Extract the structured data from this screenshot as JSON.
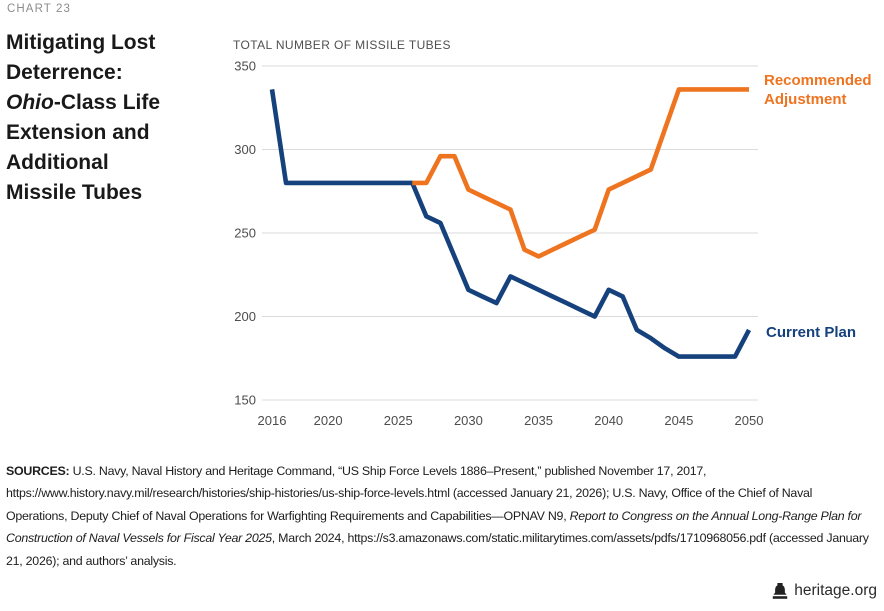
{
  "page": {
    "chart_label": "CHART 23",
    "footer_site": "heritage.org"
  },
  "title": {
    "pre": "Mitigating Lost Deterrence: ",
    "italic": "Ohio",
    "post": "-Class Life Extension and Additional Missile Tubes"
  },
  "sources": {
    "label": "SOURCES:",
    "part1": " U.S. Navy, Naval History and Heritage Command, “US Ship Force Levels 1886–Present,” published November 17, 2017, https://www.history.navy.mil/research/histories/ship-histories/us-ship-force-levels.html (accessed January 21, 2026); U.S. Navy, Office of the Chief of Naval Operations, Deputy Chief of Naval Operations for Warfighting Requirements and Capabilities—OPNAV N9, ",
    "italic": "Report to Congress on the Annual Long-Range Plan for Construction of Naval Vessels for Fiscal Year 2025",
    "part2": ", March 2024, https://s3.amazonaws.com/static.militarytimes.com/assets/pdfs/1710968056.pdf (accessed January 21, 2026); and authors’ analysis."
  },
  "chart_data": {
    "type": "line",
    "title": "TOTAL NUMBER OF MISSILE TUBES",
    "xlabel": "",
    "ylabel": "TOTAL NUMBER OF MISSILE TUBES",
    "xlim": [
      2016,
      2050
    ],
    "ylim": [
      150,
      350
    ],
    "xticks": [
      2016,
      2020,
      2025,
      2030,
      2035,
      2040,
      2045,
      2050
    ],
    "yticks": [
      150,
      200,
      250,
      300,
      350
    ],
    "grid": "horizontal-only",
    "legend_position": "right-of-line-ends",
    "series": [
      {
        "name": "Current Plan",
        "color": "#15417C",
        "x": [
          2016,
          2017,
          2018,
          2019,
          2020,
          2021,
          2022,
          2023,
          2024,
          2025,
          2026,
          2027,
          2028,
          2029,
          2030,
          2031,
          2032,
          2033,
          2034,
          2035,
          2036,
          2037,
          2038,
          2039,
          2040,
          2041,
          2042,
          2043,
          2044,
          2045,
          2046,
          2047,
          2048,
          2049,
          2050
        ],
        "values": [
          336,
          280,
          280,
          280,
          280,
          280,
          280,
          280,
          280,
          280,
          280,
          260,
          256,
          236,
          216,
          212,
          208,
          224,
          220,
          216,
          212,
          208,
          204,
          200,
          216,
          212,
          192,
          187,
          181,
          176,
          176,
          176,
          176,
          176,
          192
        ]
      },
      {
        "name": "Recommended Adjustment",
        "color": "#EE7420",
        "x": [
          2026,
          2027,
          2028,
          2029,
          2030,
          2031,
          2032,
          2033,
          2034,
          2035,
          2036,
          2037,
          2038,
          2039,
          2040,
          2041,
          2042,
          2043,
          2044,
          2045,
          2046,
          2047,
          2048,
          2049,
          2050
        ],
        "values": [
          280,
          280,
          296,
          296,
          276,
          272,
          268,
          264,
          240,
          236,
          240,
          244,
          248,
          252,
          276,
          280,
          284,
          288,
          312,
          336,
          336,
          336,
          336,
          336,
          336
        ]
      }
    ]
  }
}
